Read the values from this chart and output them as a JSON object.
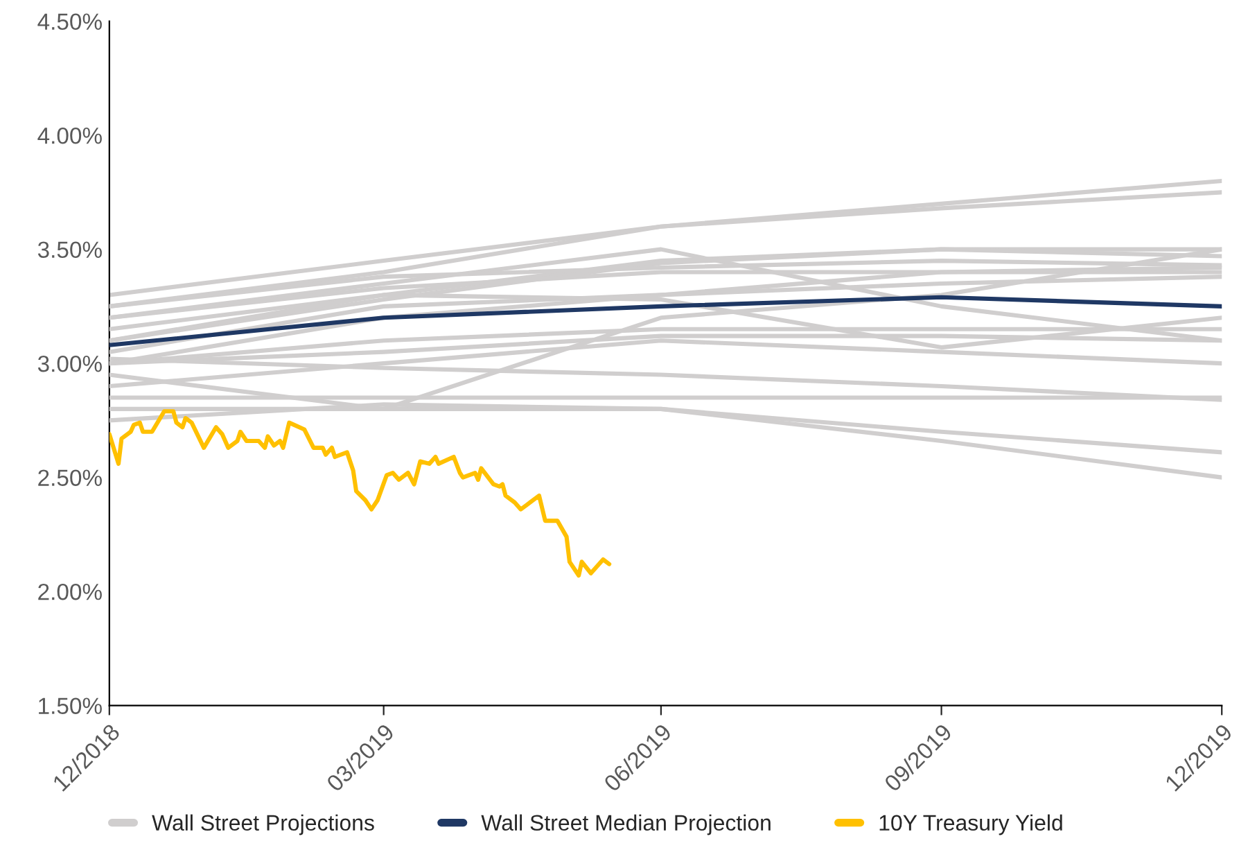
{
  "chart_data": {
    "type": "line",
    "xlim": [
      "2018-12-31",
      "2019-12-31"
    ],
    "xticks": [
      {
        "value": "2018-12-31",
        "label": "12/2018"
      },
      {
        "value": "2019-03-31",
        "label": "03/2019"
      },
      {
        "value": "2019-06-30",
        "label": "06/2019"
      },
      {
        "value": "2019-09-30",
        "label": "09/2019"
      },
      {
        "value": "2019-12-31",
        "label": "12/2019"
      }
    ],
    "ylim": [
      1.5,
      4.5
    ],
    "yticks": [
      {
        "value": 1.5,
        "label": "1.50%"
      },
      {
        "value": 2.0,
        "label": "2.00%"
      },
      {
        "value": 2.5,
        "label": "2.50%"
      },
      {
        "value": 3.0,
        "label": "3.00%"
      },
      {
        "value": 3.5,
        "label": "3.50%"
      },
      {
        "value": 4.0,
        "label": "4.00%"
      },
      {
        "value": 4.5,
        "label": "4.50%"
      }
    ],
    "x": [
      "2018-12-31",
      "2019-03-31",
      "2019-06-30",
      "2019-09-30",
      "2019-12-31"
    ],
    "grid": false,
    "legend": "bottom",
    "marker": "none",
    "line_style": "solid",
    "series": [
      {
        "name": "Wall Street Projections",
        "color": "#d0cece",
        "values": [
          3.3,
          3.45,
          3.6,
          3.7,
          3.8
        ]
      },
      {
        "color": "#d0cece",
        "values": [
          3.25,
          3.4,
          3.6,
          3.68,
          3.75
        ]
      },
      {
        "color": "#d0cece",
        "values": [
          3.2,
          3.35,
          3.5,
          3.25,
          3.1
        ]
      },
      {
        "color": "#d0cece",
        "values": [
          3.15,
          3.3,
          3.45,
          3.5,
          3.5
        ]
      },
      {
        "color": "#d0cece",
        "values": [
          3.1,
          3.28,
          3.44,
          3.5,
          3.47
        ]
      },
      {
        "color": "#d0cece",
        "values": [
          3.25,
          3.38,
          3.42,
          3.45,
          3.43
        ]
      },
      {
        "color": "#d0cece",
        "values": [
          3.2,
          3.33,
          3.4,
          3.4,
          3.4
        ]
      },
      {
        "color": "#d0cece",
        "values": [
          3.05,
          3.25,
          3.3,
          3.4,
          3.42
        ]
      },
      {
        "color": "#d0cece",
        "values": [
          3.0,
          3.2,
          3.3,
          3.35,
          3.38
        ]
      },
      {
        "color": "#d0cece",
        "values": [
          3.1,
          3.3,
          3.28,
          3.07,
          3.2
        ]
      },
      {
        "color": "#d0cece",
        "values": [
          3.0,
          3.1,
          3.15,
          3.15,
          3.15
        ]
      },
      {
        "color": "#d0cece",
        "values": [
          3.0,
          3.05,
          3.12,
          3.12,
          3.1
        ]
      },
      {
        "color": "#d0cece",
        "values": [
          2.9,
          3.0,
          3.1,
          3.05,
          3.0
        ]
      },
      {
        "color": "#d0cece",
        "values": [
          2.95,
          2.8,
          3.2,
          3.3,
          3.5
        ]
      },
      {
        "color": "#d0cece",
        "values": [
          3.02,
          2.98,
          2.95,
          2.9,
          2.84
        ]
      },
      {
        "color": "#d0cece",
        "values": [
          2.85,
          2.85,
          2.85,
          2.85,
          2.85
        ]
      },
      {
        "color": "#d0cece",
        "values": [
          2.8,
          2.8,
          2.8,
          2.7,
          2.61
        ]
      },
      {
        "color": "#d0cece",
        "values": [
          2.75,
          2.82,
          2.8,
          2.66,
          2.5
        ]
      },
      {
        "name": "Wall Street Median Projection",
        "color": "#1f3864",
        "values": [
          3.08,
          3.2,
          3.25,
          3.29,
          3.25
        ]
      },
      {
        "name": "10Y Treasury Yield",
        "color": "#ffc000",
        "x": [
          "2018-12-31",
          "2019-01-03",
          "2019-01-04",
          "2019-01-07",
          "2019-01-08",
          "2019-01-10",
          "2019-01-11",
          "2019-01-14",
          "2019-01-18",
          "2019-01-21",
          "2019-01-22",
          "2019-01-24",
          "2019-01-25",
          "2019-01-27",
          "2019-01-31",
          "2019-02-04",
          "2019-02-06",
          "2019-02-08",
          "2019-02-11",
          "2019-02-12",
          "2019-02-14",
          "2019-02-18",
          "2019-02-20",
          "2019-02-21",
          "2019-02-23",
          "2019-02-25",
          "2019-02-26",
          "2019-02-28",
          "2019-03-05",
          "2019-03-08",
          "2019-03-11",
          "2019-03-12",
          "2019-03-14",
          "2019-03-15",
          "2019-03-19",
          "2019-03-21",
          "2019-03-22",
          "2019-03-25",
          "2019-03-27",
          "2019-03-29",
          "2019-04-01",
          "2019-04-03",
          "2019-04-05",
          "2019-04-08",
          "2019-04-10",
          "2019-04-12",
          "2019-04-15",
          "2019-04-17",
          "2019-04-18",
          "2019-04-23",
          "2019-04-25",
          "2019-04-26",
          "2019-04-30",
          "2019-05-01",
          "2019-05-02",
          "2019-05-06",
          "2019-05-08",
          "2019-05-09",
          "2019-05-10",
          "2019-05-13",
          "2019-05-15",
          "2019-05-17",
          "2019-05-21",
          "2019-05-23",
          "2019-05-27",
          "2019-05-30",
          "2019-05-31",
          "2019-06-03",
          "2019-06-04",
          "2019-06-07",
          "2019-06-11",
          "2019-06-13"
        ],
        "values": [
          2.69,
          2.56,
          2.67,
          2.7,
          2.73,
          2.74,
          2.7,
          2.7,
          2.79,
          2.79,
          2.74,
          2.72,
          2.76,
          2.74,
          2.63,
          2.72,
          2.69,
          2.63,
          2.66,
          2.7,
          2.66,
          2.66,
          2.63,
          2.68,
          2.64,
          2.66,
          2.63,
          2.74,
          2.71,
          2.63,
          2.63,
          2.6,
          2.63,
          2.59,
          2.61,
          2.53,
          2.44,
          2.4,
          2.36,
          2.4,
          2.51,
          2.52,
          2.49,
          2.52,
          2.47,
          2.57,
          2.56,
          2.59,
          2.56,
          2.59,
          2.52,
          2.5,
          2.52,
          2.49,
          2.54,
          2.47,
          2.46,
          2.47,
          2.42,
          2.39,
          2.36,
          2.38,
          2.42,
          2.31,
          2.31,
          2.24,
          2.13,
          2.07,
          2.13,
          2.08,
          2.14,
          2.12
        ]
      }
    ]
  }
}
